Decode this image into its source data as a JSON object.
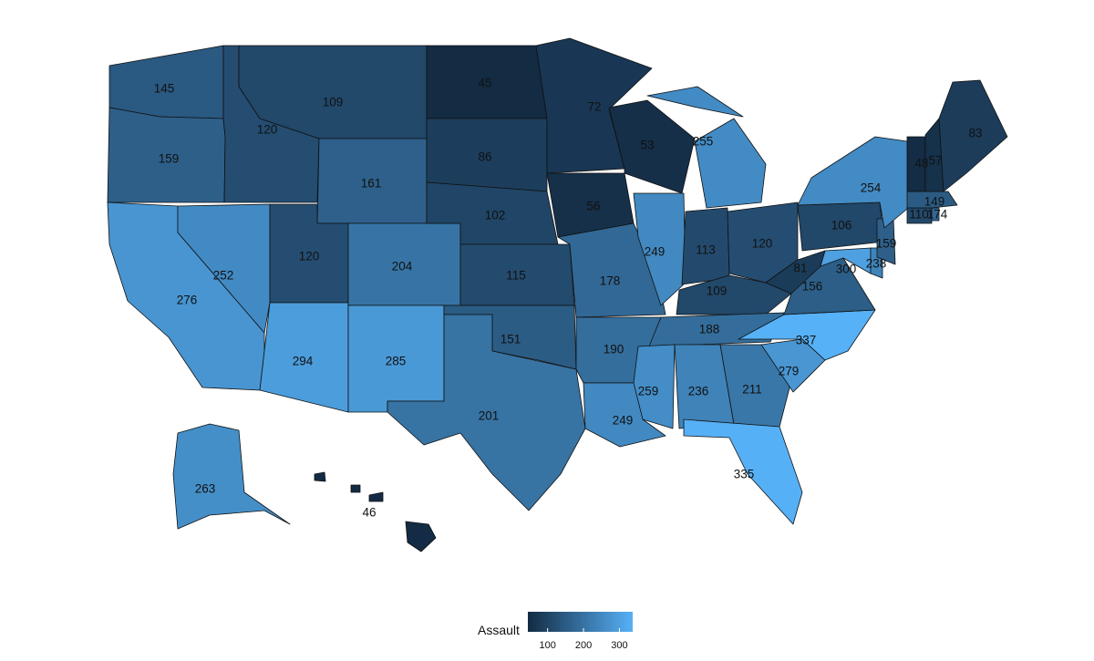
{
  "chart_data": {
    "type": "choropleth",
    "variable": "Assault",
    "color_scale": {
      "low": "#132b43",
      "high": "#56b1f7",
      "domain": [
        45,
        337
      ]
    },
    "legend": {
      "title": "Assault",
      "ticks": [
        100,
        200,
        300
      ],
      "placement": "bottom"
    },
    "states": [
      {
        "state": "Washington",
        "value": 145
      },
      {
        "state": "Oregon",
        "value": 159
      },
      {
        "state": "California",
        "value": 276
      },
      {
        "state": "Idaho",
        "value": 120
      },
      {
        "state": "Nevada",
        "value": 252
      },
      {
        "state": "Montana",
        "value": 109
      },
      {
        "state": "Wyoming",
        "value": 161
      },
      {
        "state": "Utah",
        "value": 120
      },
      {
        "state": "Arizona",
        "value": 294
      },
      {
        "state": "Colorado",
        "value": 204
      },
      {
        "state": "New Mexico",
        "value": 285
      },
      {
        "state": "North Dakota",
        "value": 45
      },
      {
        "state": "South Dakota",
        "value": 86
      },
      {
        "state": "Nebraska",
        "value": 102
      },
      {
        "state": "Kansas",
        "value": 115
      },
      {
        "state": "Oklahoma",
        "value": 151
      },
      {
        "state": "Texas",
        "value": 201
      },
      {
        "state": "Minnesota",
        "value": 72
      },
      {
        "state": "Iowa",
        "value": 56
      },
      {
        "state": "Missouri",
        "value": 178
      },
      {
        "state": "Arkansas",
        "value": 190
      },
      {
        "state": "Louisiana",
        "value": 249
      },
      {
        "state": "Wisconsin",
        "value": 53
      },
      {
        "state": "Illinois",
        "value": 249
      },
      {
        "state": "Michigan",
        "value": 255
      },
      {
        "state": "Indiana",
        "value": 113
      },
      {
        "state": "Ohio",
        "value": 120
      },
      {
        "state": "Kentucky",
        "value": 109
      },
      {
        "state": "Tennessee",
        "value": 188
      },
      {
        "state": "Mississippi",
        "value": 259
      },
      {
        "state": "Alabama",
        "value": 236
      },
      {
        "state": "Georgia",
        "value": 211
      },
      {
        "state": "Florida",
        "value": 335
      },
      {
        "state": "South Carolina",
        "value": 279
      },
      {
        "state": "North Carolina",
        "value": 337
      },
      {
        "state": "Virginia",
        "value": 156
      },
      {
        "state": "West Virginia",
        "value": 81
      },
      {
        "state": "Maryland",
        "value": 300
      },
      {
        "state": "Delaware",
        "value": 238
      },
      {
        "state": "Pennsylvania",
        "value": 106
      },
      {
        "state": "New Jersey",
        "value": 159
      },
      {
        "state": "New York",
        "value": 254
      },
      {
        "state": "Connecticut",
        "value": 110
      },
      {
        "state": "Rhode Island",
        "value": 174
      },
      {
        "state": "Massachusetts",
        "value": 149
      },
      {
        "state": "Vermont",
        "value": 48
      },
      {
        "state": "New Hampshire",
        "value": 57
      },
      {
        "state": "Maine",
        "value": 83
      },
      {
        "state": "Alaska",
        "value": 263
      },
      {
        "state": "Hawaii",
        "value": 46
      }
    ]
  }
}
